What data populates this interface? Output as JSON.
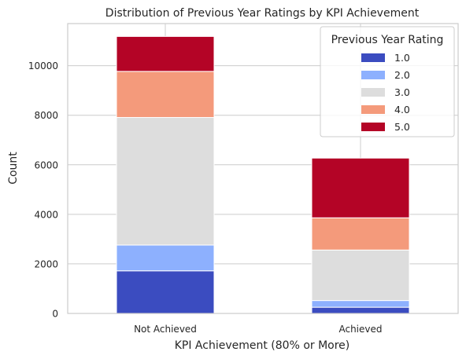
{
  "chart_data": {
    "type": "bar",
    "stacked": true,
    "title": "Distribution of Previous Year Ratings by KPI Achievement",
    "xlabel": "KPI Achievement (80% or More)",
    "ylabel": "Count",
    "categories": [
      "Not Achieved",
      "Achieved"
    ],
    "ylim": [
      0,
      11700
    ],
    "yticks": [
      0,
      2000,
      4000,
      6000,
      8000,
      10000
    ],
    "grid": true,
    "legend": {
      "title": "Previous Year Rating",
      "placement": "top-right"
    },
    "series": [
      {
        "name": "1.0",
        "color": "#3b4cc0",
        "values": [
          1720,
          250
        ]
      },
      {
        "name": "2.0",
        "color": "#8db0fe",
        "values": [
          1040,
          270
        ]
      },
      {
        "name": "3.0",
        "color": "#dddddd",
        "values": [
          5150,
          2040
        ]
      },
      {
        "name": "4.0",
        "color": "#f49a7b",
        "values": [
          1860,
          1300
        ]
      },
      {
        "name": "5.0",
        "color": "#b40426",
        "values": [
          1410,
          2410
        ]
      }
    ]
  }
}
